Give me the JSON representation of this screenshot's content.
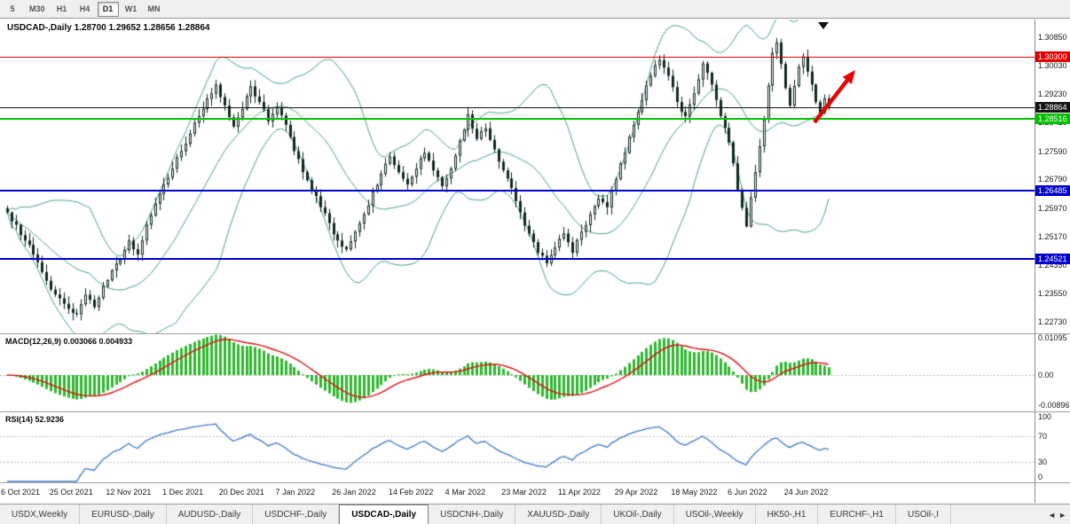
{
  "toolbar": {
    "timeframes": [
      "5",
      "M30",
      "H1",
      "H4",
      "D1",
      "W1",
      "MN"
    ],
    "active": "D1"
  },
  "header": {
    "text": "USDCAD-,Daily 1.28700 1.29652 1.28656 1.28864"
  },
  "macd_panel": {
    "label": "MACD(12,26,9) 0.003066 0.004933",
    "axis_labels": [
      "0.01095",
      "0.00",
      "-0.00896"
    ],
    "axis_values": [
      0.01095,
      0,
      -0.00896
    ]
  },
  "rsi_panel": {
    "label": "RSI(14) 52.9236",
    "axis_labels": [
      "100",
      "70",
      "30",
      "0"
    ],
    "axis_values": [
      100,
      70,
      30,
      0
    ]
  },
  "tabs": {
    "items": [
      "USDX,Weekly",
      "EURUSD-,Daily",
      "AUDUSD-,Daily",
      "USDCHF-,Daily",
      "USDCAD-,Daily",
      "USDCNH-,Daily",
      "XAUUSD-,Daily",
      "UKOil-,Daily",
      "USOil-,Weekly",
      "HK50-,H1",
      "EURCHF-,H1",
      "USOil-,I"
    ],
    "active": "USDCAD-,Daily",
    "scroll_left": "◄",
    "scroll_right": "►"
  },
  "chart_data": {
    "type": "candlestick",
    "symbol": "USDCAD-,Daily",
    "ohlc": {
      "open": 1.287,
      "high": 1.29652,
      "low": 1.28656,
      "close": 1.28864
    },
    "bars": 190,
    "close_anchors": [
      [
        0,
        1.2585
      ],
      [
        2,
        1.255
      ],
      [
        4,
        1.2505
      ],
      [
        6,
        1.2465
      ],
      [
        8,
        1.2415
      ],
      [
        10,
        1.2365
      ],
      [
        12,
        1.234
      ],
      [
        14,
        1.231
      ],
      [
        16,
        1.2295
      ],
      [
        18,
        1.235
      ],
      [
        20,
        1.2315
      ],
      [
        22,
        1.2375
      ],
      [
        24,
        1.242
      ],
      [
        26,
        1.245
      ],
      [
        28,
        1.2505
      ],
      [
        30,
        1.2465
      ],
      [
        32,
        1.255
      ],
      [
        34,
        1.261
      ],
      [
        36,
        1.2665
      ],
      [
        38,
        1.271
      ],
      [
        40,
        1.276
      ],
      [
        42,
        1.281
      ],
      [
        44,
        1.286
      ],
      [
        46,
        1.291
      ],
      [
        48,
        1.295
      ],
      [
        50,
        1.289
      ],
      [
        52,
        1.283
      ],
      [
        54,
        1.288
      ],
      [
        56,
        1.2945
      ],
      [
        58,
        1.29
      ],
      [
        60,
        1.2845
      ],
      [
        62,
        1.2885
      ],
      [
        64,
        1.2835
      ],
      [
        66,
        1.276
      ],
      [
        68,
        1.27
      ],
      [
        70,
        1.265
      ],
      [
        72,
        1.26
      ],
      [
        74,
        1.2555
      ],
      [
        76,
        1.2505
      ],
      [
        78,
        1.248
      ],
      [
        80,
        1.253
      ],
      [
        82,
        1.258
      ],
      [
        84,
        1.2645
      ],
      [
        86,
        1.2695
      ],
      [
        88,
        1.2745
      ],
      [
        90,
        1.27
      ],
      [
        92,
        1.2665
      ],
      [
        94,
        1.271
      ],
      [
        96,
        1.2755
      ],
      [
        98,
        1.2705
      ],
      [
        100,
        1.266
      ],
      [
        102,
        1.271
      ],
      [
        104,
        1.279
      ],
      [
        106,
        1.2865
      ],
      [
        108,
        1.2795
      ],
      [
        110,
        1.2825
      ],
      [
        112,
        1.2765
      ],
      [
        114,
        1.2705
      ],
      [
        116,
        1.2655
      ],
      [
        118,
        1.2585
      ],
      [
        120,
        1.2525
      ],
      [
        122,
        1.247
      ],
      [
        124,
        1.244
      ],
      [
        126,
        1.2485
      ],
      [
        128,
        1.2525
      ],
      [
        130,
        1.247
      ],
      [
        132,
        1.253
      ],
      [
        134,
        1.258
      ],
      [
        136,
        1.2625
      ],
      [
        138,
        1.26
      ],
      [
        140,
        1.268
      ],
      [
        142,
        1.2755
      ],
      [
        144,
        1.2835
      ],
      [
        146,
        1.2905
      ],
      [
        148,
        1.2975
      ],
      [
        150,
        1.302
      ],
      [
        152,
        1.2975
      ],
      [
        154,
        1.29
      ],
      [
        156,
        1.286
      ],
      [
        158,
        1.2925
      ],
      [
        160,
        1.301
      ],
      [
        162,
        1.295
      ],
      [
        164,
        1.286
      ],
      [
        166,
        1.2785
      ],
      [
        168,
        1.265
      ],
      [
        170,
        1.2545
      ],
      [
        172,
        1.27
      ],
      [
        174,
        1.285
      ],
      [
        176,
        1.304
      ],
      [
        177,
        1.307
      ],
      [
        179,
        1.294
      ],
      [
        180,
        1.289
      ],
      [
        182,
        1.3
      ],
      [
        183,
        1.303
      ],
      [
        185,
        1.295
      ],
      [
        186,
        1.29
      ],
      [
        187,
        1.287
      ],
      [
        188,
        1.291
      ],
      [
        189,
        1.28864
      ]
    ],
    "x_ticks": {
      "indices": [
        0,
        13,
        26,
        39,
        52,
        65,
        78,
        91,
        104,
        117,
        130,
        143,
        156,
        169,
        182
      ],
      "labels": [
        "6 Oct 2021",
        "25 Oct 2021",
        "12 Nov 2021",
        "1 Dec 2021",
        "20 Dec 2021",
        "7 Jan 2022",
        "26 Jan 2022",
        "14 Feb 2022",
        "4 Mar 2022",
        "23 Mar 2022",
        "11 Apr 2022",
        "29 Apr 2022",
        "18 May 2022",
        "6 Jun 2022",
        "24 Jun 2022"
      ]
    },
    "y_ticks": [
      1.3085,
      1.3003,
      1.2923,
      1.2841,
      1.2759,
      1.2679,
      1.2597,
      1.2517,
      1.2435,
      1.2355,
      1.2273
    ],
    "bollinger": {
      "period": 20,
      "deviation": 2,
      "color": "#45a392"
    },
    "candle_color": "#10291d",
    "h_lines": [
      {
        "price": 1.303,
        "color": "#e00000",
        "width": 1
      },
      {
        "price": 1.28864,
        "color": "#141414",
        "width": 1
      },
      {
        "price": 1.28516,
        "color": "#00c000",
        "width": 2
      },
      {
        "price": 1.26485,
        "color": "#0000cd",
        "width": 2
      },
      {
        "price": 1.24521,
        "color": "#0000cd",
        "width": 2
      }
    ],
    "arrow": {
      "from": [
        918,
        138
      ],
      "to": [
        964,
        79
      ],
      "color": "#e80000"
    },
    "macd": {
      "fast": 12,
      "slow": 26,
      "signal": 9,
      "value": 0.003066,
      "signal_value": 0.004933,
      "hist_color": "#2eb82e",
      "signal_color": "#dd1111"
    },
    "rsi": {
      "period": 14,
      "value": 52.9236,
      "color": "#3b78cc",
      "levels": [
        70,
        30
      ]
    }
  }
}
